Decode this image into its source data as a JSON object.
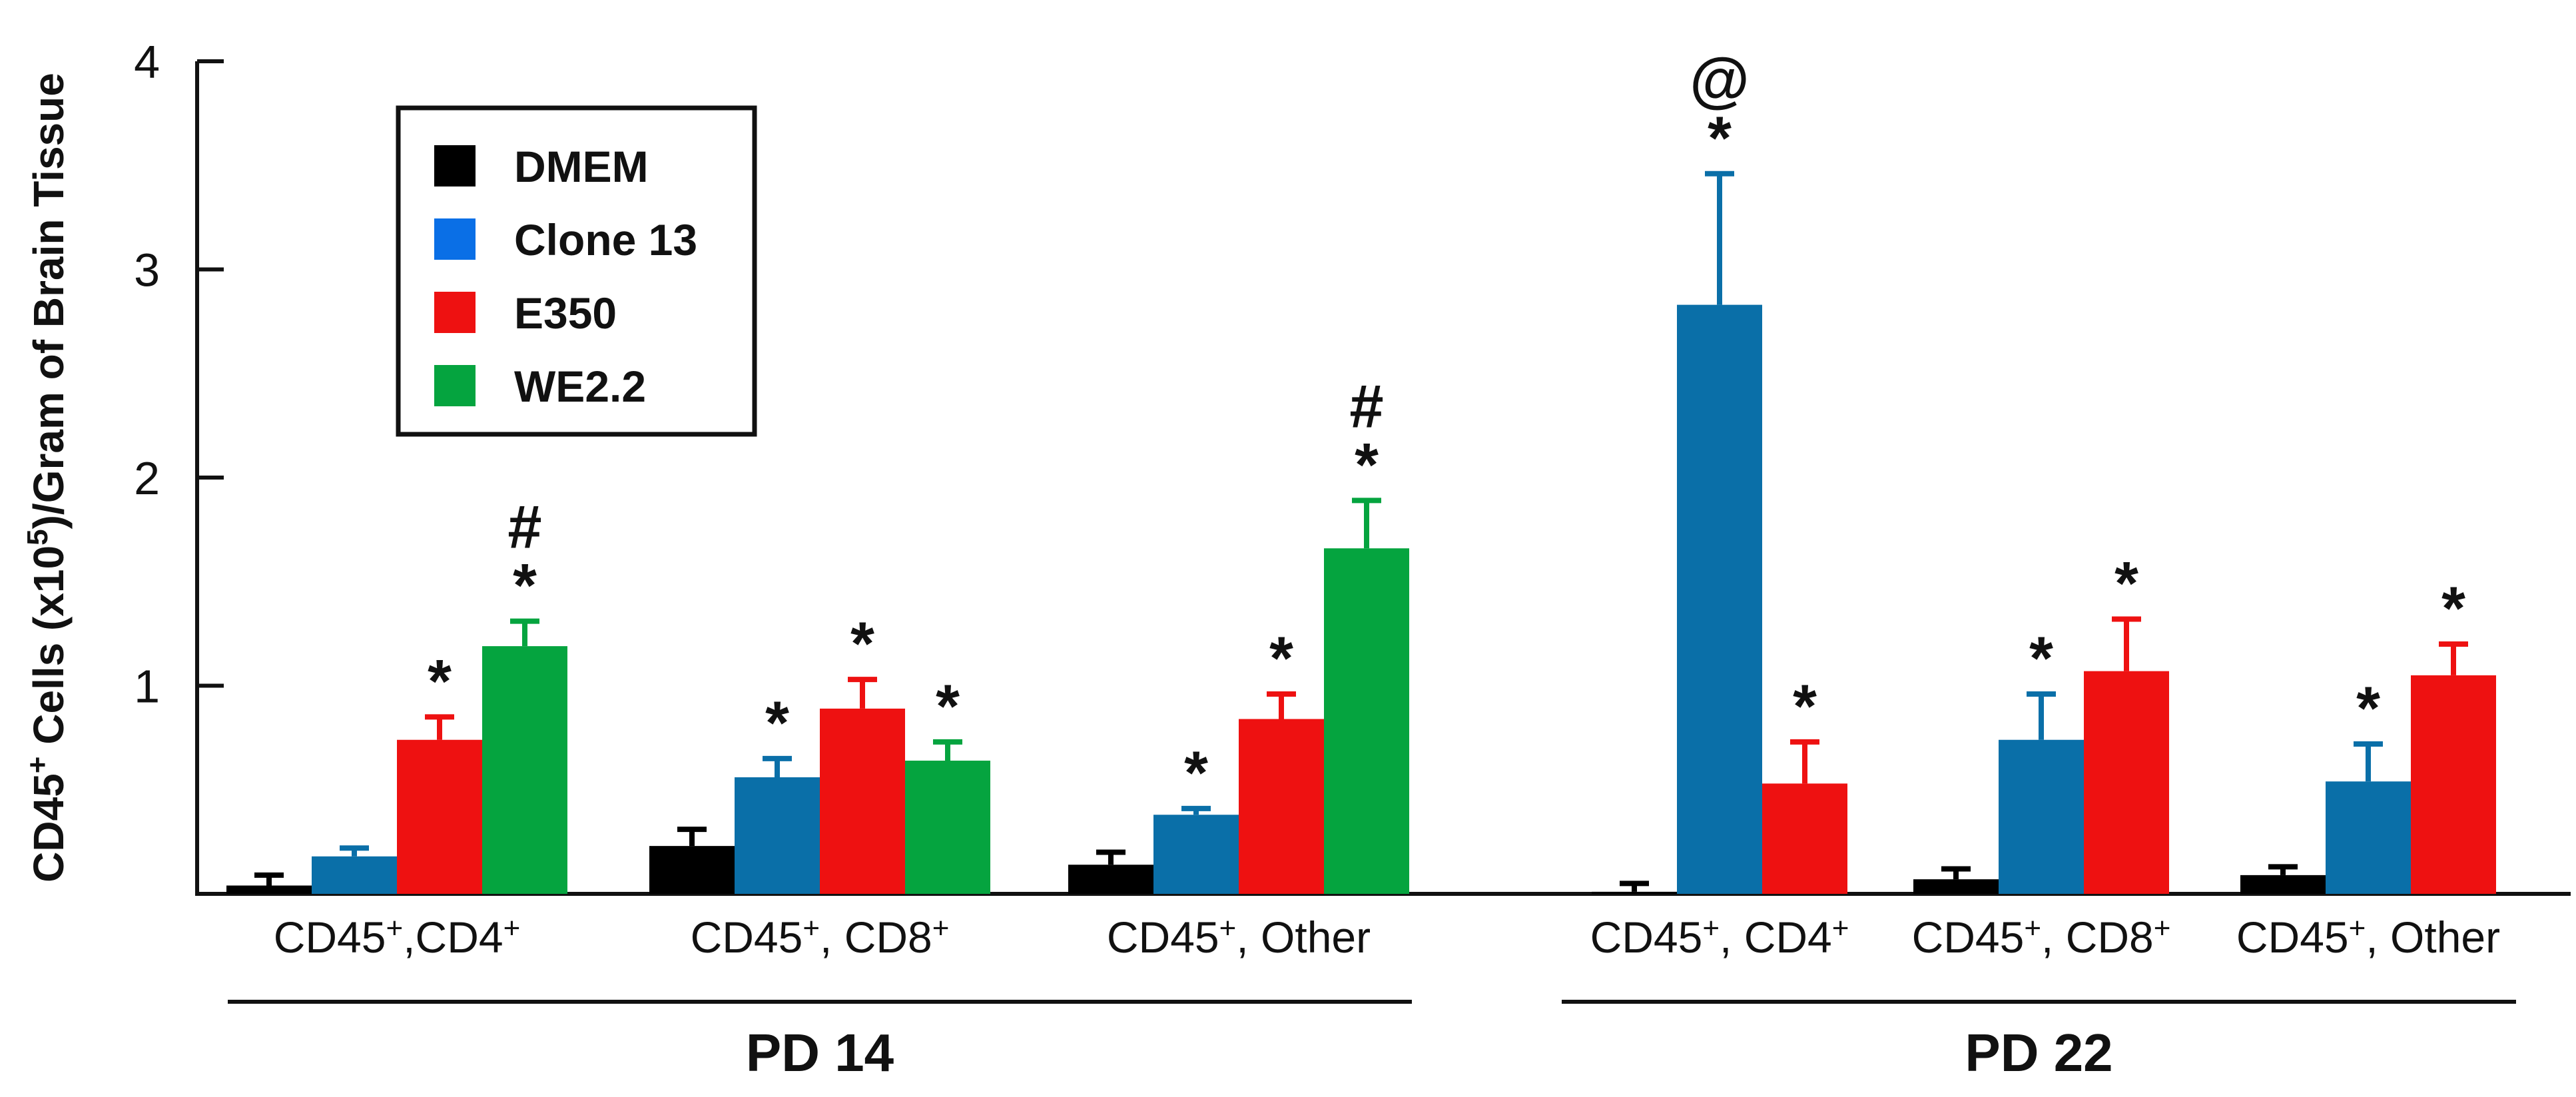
{
  "chart_data": {
    "type": "bar",
    "title": "",
    "xlabel": "",
    "ylabel": {
      "prefix": "CD45",
      "prefix_sup": "+",
      "middle": " Cells (x10",
      "middle_sup": "5",
      "suffix": ")/Gram of Brain Tissue"
    },
    "ylim": [
      0,
      4
    ],
    "yticks": [
      {
        "value": 1,
        "label": "1"
      },
      {
        "value": 2,
        "label": "2"
      },
      {
        "value": 3,
        "label": "3"
      },
      {
        "value": 4,
        "label": "4"
      }
    ],
    "grid": false,
    "legend": {
      "position": "top-left",
      "entries": [
        {
          "name": "DMEM",
          "color": "#000000"
        },
        {
          "name": "Clone 13",
          "color": "#0a6fe6"
        },
        {
          "name": "E350",
          "color": "#ee1111"
        },
        {
          "name": "WE2.2",
          "color": "#05a43f"
        }
      ]
    },
    "series_colors": {
      "DMEM": "#000000",
      "Clone 13": "#0a6fa8",
      "E350": "#ee1111",
      "WE2.2": "#05a43f"
    },
    "groups": [
      {
        "label": "PD 14",
        "categories": [
          {
            "label_parts": [
              {
                "t": "CD45"
              },
              {
                "t": "+",
                "sup": true
              },
              {
                "t": ",CD4"
              },
              {
                "t": "+",
                "sup": true
              }
            ],
            "bars": [
              {
                "series": "DMEM",
                "value": 0.04,
                "error": 0.05
              },
              {
                "series": "Clone 13",
                "value": 0.18,
                "error": 0.04
              },
              {
                "series": "E350",
                "value": 0.74,
                "error": 0.11,
                "annotations": [
                  "*"
                ]
              },
              {
                "series": "WE2.2",
                "value": 1.19,
                "error": 0.12,
                "annotations": [
                  "*",
                  "#"
                ]
              }
            ]
          },
          {
            "label_parts": [
              {
                "t": "CD45"
              },
              {
                "t": "+",
                "sup": true
              },
              {
                "t": ", CD8"
              },
              {
                "t": "+",
                "sup": true
              }
            ],
            "bars": [
              {
                "series": "DMEM",
                "value": 0.23,
                "error": 0.08
              },
              {
                "series": "Clone 13",
                "value": 0.56,
                "error": 0.09,
                "annotations": [
                  "*"
                ]
              },
              {
                "series": "E350",
                "value": 0.89,
                "error": 0.14,
                "annotations": [
                  "*"
                ]
              },
              {
                "series": "WE2.2",
                "value": 0.64,
                "error": 0.09,
                "annotations": [
                  "*"
                ]
              }
            ]
          },
          {
            "label_parts": [
              {
                "t": "CD45"
              },
              {
                "t": "+",
                "sup": true
              },
              {
                "t": ", Other"
              }
            ],
            "bars": [
              {
                "series": "DMEM",
                "value": 0.14,
                "error": 0.06
              },
              {
                "series": "Clone 13",
                "value": 0.38,
                "error": 0.03,
                "annotations": [
                  "*"
                ]
              },
              {
                "series": "E350",
                "value": 0.84,
                "error": 0.12,
                "annotations": [
                  "*"
                ]
              },
              {
                "series": "WE2.2",
                "value": 1.66,
                "error": 0.23,
                "annotations": [
                  "*",
                  "#"
                ]
              }
            ]
          }
        ]
      },
      {
        "label": "PD 22",
        "categories": [
          {
            "label_parts": [
              {
                "t": "CD45"
              },
              {
                "t": "+",
                "sup": true
              },
              {
                "t": ", CD4"
              },
              {
                "t": "+",
                "sup": true
              }
            ],
            "bars": [
              {
                "series": "DMEM",
                "value": 0.01,
                "error": 0.04
              },
              {
                "series": "Clone 13",
                "value": 2.83,
                "error": 0.63,
                "annotations": [
                  "*",
                  "@"
                ]
              },
              {
                "series": "E350",
                "value": 0.53,
                "error": 0.2,
                "annotations": [
                  "*"
                ]
              }
            ]
          },
          {
            "label_parts": [
              {
                "t": "CD45"
              },
              {
                "t": "+",
                "sup": true
              },
              {
                "t": ", CD8"
              },
              {
                "t": "+",
                "sup": true
              }
            ],
            "bars": [
              {
                "series": "DMEM",
                "value": 0.07,
                "error": 0.05
              },
              {
                "series": "Clone 13",
                "value": 0.74,
                "error": 0.22,
                "annotations": [
                  "*"
                ]
              },
              {
                "series": "E350",
                "value": 1.07,
                "error": 0.25,
                "annotations": [
                  "*"
                ]
              }
            ]
          },
          {
            "label_parts": [
              {
                "t": "CD45"
              },
              {
                "t": "+",
                "sup": true
              },
              {
                "t": ", Other"
              }
            ],
            "bars": [
              {
                "series": "DMEM",
                "value": 0.09,
                "error": 0.04
              },
              {
                "series": "Clone 13",
                "value": 0.54,
                "error": 0.18,
                "annotations": [
                  "*"
                ]
              },
              {
                "series": "E350",
                "value": 1.05,
                "error": 0.15,
                "annotations": [
                  "*"
                ]
              }
            ]
          }
        ]
      }
    ]
  }
}
